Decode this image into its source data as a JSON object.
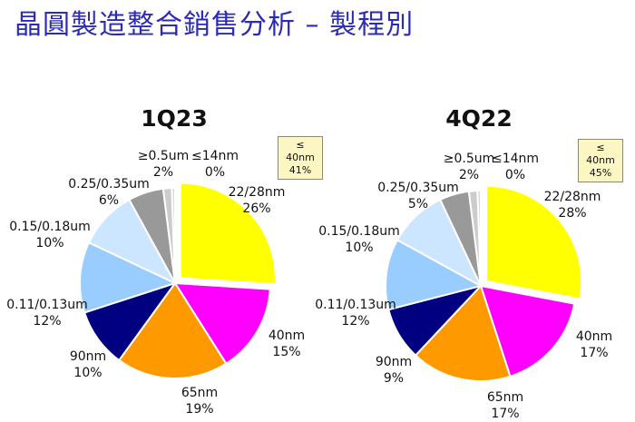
{
  "page": {
    "title": "晶圓製造整合銷售分析 – 製程別"
  },
  "colors": {
    "22/28nm": "#ffff00",
    "40nm": "#ff00ff",
    "65nm": "#ff9900",
    "90nm": "#000080",
    "0.11/0.13um": "#99ccff",
    "0.15/0.18um": "#cce6ff",
    "0.25/0.35um": "#999999",
    "≥0.5um": "#cccccc",
    "≤14nm": "#d9d9d9"
  },
  "chart_data": [
    {
      "type": "pie",
      "title": "1Q23",
      "badge": {
        "line1": "≤ 40nm",
        "line2": "41%"
      },
      "slices": [
        {
          "label": "22/28nm",
          "value": 26,
          "value_label": "26%"
        },
        {
          "label": "40nm",
          "value": 15,
          "value_label": "15%"
        },
        {
          "label": "65nm",
          "value": 19,
          "value_label": "19%"
        },
        {
          "label": "90nm",
          "value": 10,
          "value_label": "10%"
        },
        {
          "label": "0.11/0.13um",
          "value": 12,
          "value_label": "12%"
        },
        {
          "label": "0.15/0.18um",
          "value": 10,
          "value_label": "10%"
        },
        {
          "label": "0.25/0.35um",
          "value": 6,
          "value_label": "6%"
        },
        {
          "label": "≥0.5um",
          "value": 2,
          "value_label": "2%"
        },
        {
          "label": "≤14nm",
          "value": 0,
          "value_label": "0%"
        }
      ]
    },
    {
      "type": "pie",
      "title": "4Q22",
      "badge": {
        "line1": "≤ 40nm",
        "line2": "45%"
      },
      "slices": [
        {
          "label": "22/28nm",
          "value": 28,
          "value_label": "28%"
        },
        {
          "label": "40nm",
          "value": 17,
          "value_label": "17%"
        },
        {
          "label": "65nm",
          "value": 17,
          "value_label": "17%"
        },
        {
          "label": "90nm",
          "value": 9,
          "value_label": "9%"
        },
        {
          "label": "0.11/0.13um",
          "value": 12,
          "value_label": "12%"
        },
        {
          "label": "0.15/0.18um",
          "value": 10,
          "value_label": "10%"
        },
        {
          "label": "0.25/0.35um",
          "value": 5,
          "value_label": "5%"
        },
        {
          "label": "≥0.5um",
          "value": 2,
          "value_label": "2%"
        },
        {
          "label": "≤14nm",
          "value": 0,
          "value_label": "0%"
        }
      ]
    }
  ]
}
